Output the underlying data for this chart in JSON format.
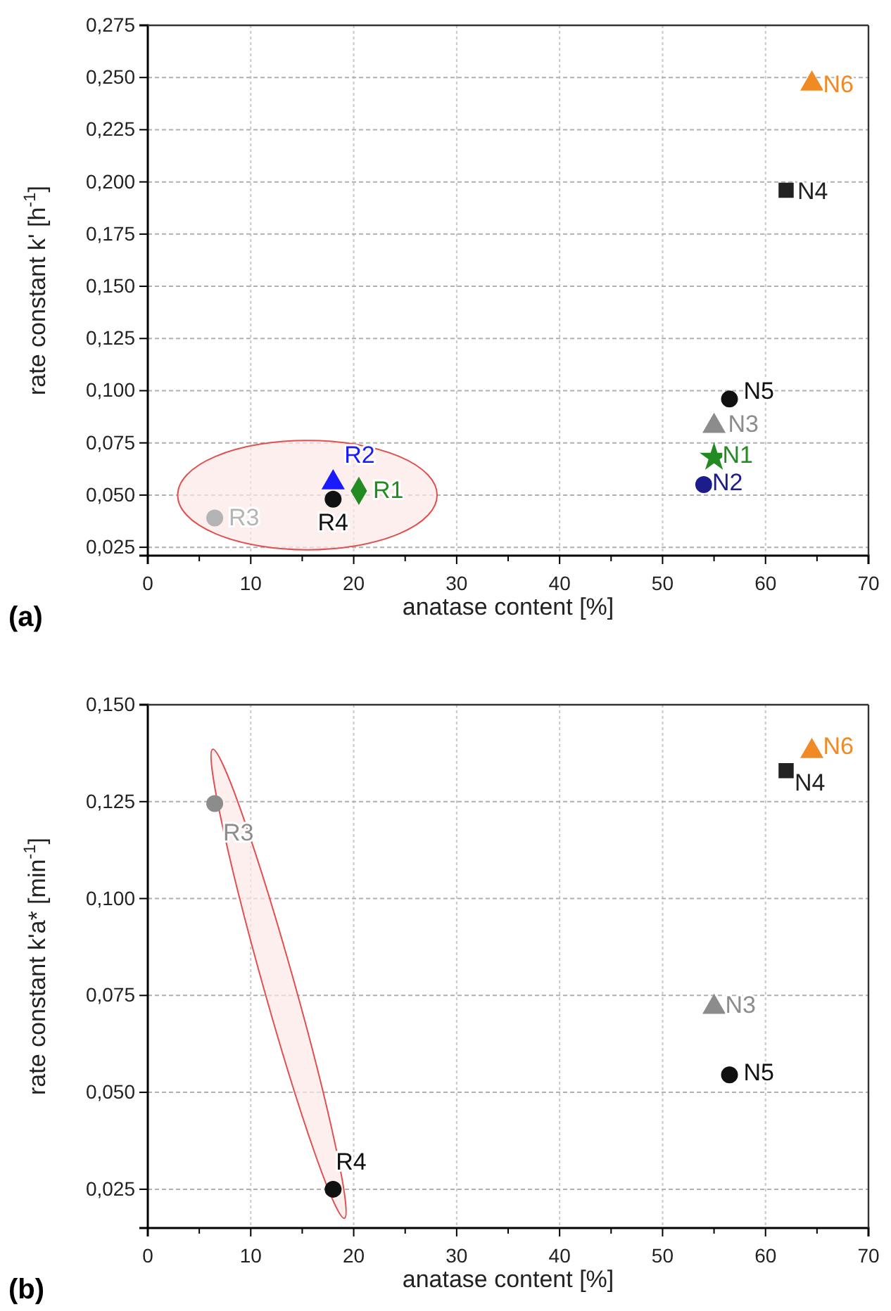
{
  "chart_data": [
    {
      "type": "scatter",
      "xlabel": "anatase content [%]",
      "ylabel": "rate constant k' [h$^{-1}$]",
      "annotations": [
        "(a)"
      ],
      "grid": true,
      "xlim": [
        0,
        70
      ],
      "xticks": [
        0,
        {
          "value": 5,
          "label": null
        },
        10,
        {
          "value": 15,
          "label": null
        },
        20,
        {
          "value": 25,
          "label": null
        },
        30,
        {
          "value": 35,
          "label": null
        },
        40,
        {
          "value": 45,
          "label": null
        },
        50,
        {
          "value": 55,
          "label": null
        },
        60,
        {
          "value": 65,
          "label": null
        },
        70
      ],
      "ylim": [
        0.021,
        0.275
      ],
      "yticks": [
        {
          "value": 0.025,
          "label": "0,025"
        },
        {
          "value": 0.05,
          "label": "0,050"
        },
        {
          "value": 0.075,
          "label": "0,075"
        },
        {
          "value": 0.1,
          "label": "0,100"
        },
        {
          "value": 0.125,
          "label": "0,125"
        },
        {
          "value": 0.15,
          "label": "0,150"
        },
        {
          "value": 0.175,
          "label": "0,175"
        },
        {
          "value": 0.2,
          "label": "0,200"
        },
        {
          "value": 0.225,
          "label": "0,225"
        },
        {
          "value": 0.25,
          "label": "0,250"
        },
        {
          "value": 0.275,
          "label": "0,275"
        }
      ],
      "series": [
        {
          "name": "R3",
          "color": "#b4b4b4",
          "marker": "circle",
          "x": [
            6.5
          ],
          "values": [
            0.039
          ]
        },
        {
          "name": "R4",
          "color": "#111111",
          "marker": "circle",
          "x": [
            18
          ],
          "values": [
            0.048
          ]
        },
        {
          "name": "R2",
          "color": "#1a1aff",
          "marker": "triangle",
          "x": [
            18
          ],
          "values": [
            0.056
          ]
        },
        {
          "name": "R1",
          "color": "#228b22",
          "marker": "diamond",
          "x": [
            20.5
          ],
          "values": [
            0.052
          ]
        },
        {
          "name": "N6",
          "color": "#f08a24",
          "marker": "triangle",
          "x": [
            64.5
          ],
          "values": [
            0.247
          ]
        },
        {
          "name": "N4",
          "color": "#222222",
          "marker": "square",
          "x": [
            62
          ],
          "values": [
            0.196
          ]
        },
        {
          "name": "N5",
          "color": "#111111",
          "marker": "circle",
          "x": [
            56.5
          ],
          "values": [
            0.096
          ]
        },
        {
          "name": "N3",
          "color": "#8c8c8c",
          "marker": "triangle",
          "x": [
            55
          ],
          "values": [
            0.083
          ]
        },
        {
          "name": "N1",
          "color": "#228b22",
          "marker": "star",
          "x": [
            55
          ],
          "values": [
            0.068
          ]
        },
        {
          "name": "N2",
          "color": "#1c1c8c",
          "marker": "circle",
          "x": [
            54
          ],
          "values": [
            0.055
          ]
        }
      ]
    },
    {
      "type": "scatter",
      "xlabel": "anatase content [%]",
      "ylabel": "rate constant k'a* [min$^{-1}$]",
      "annotations": [
        "(b)"
      ],
      "grid": true,
      "xlim": [
        0,
        70
      ],
      "xticks": [
        0,
        {
          "value": 5,
          "label": null
        },
        10,
        {
          "value": 15,
          "label": null
        },
        20,
        {
          "value": 25,
          "label": null
        },
        30,
        {
          "value": 35,
          "label": null
        },
        40,
        {
          "value": 45,
          "label": null
        },
        50,
        {
          "value": 55,
          "label": null
        },
        60,
        {
          "value": 65,
          "label": null
        },
        70
      ],
      "ylim": [
        0.015,
        0.15
      ],
      "yticks": [
        {
          "value": 0.025,
          "label": "0,025"
        },
        {
          "value": 0.05,
          "label": "0,050"
        },
        {
          "value": 0.075,
          "label": "0,075"
        },
        {
          "value": 0.1,
          "label": "0,100"
        },
        {
          "value": 0.125,
          "label": "0,125"
        },
        {
          "value": 0.15,
          "label": "0,150"
        }
      ],
      "series": [
        {
          "name": "R3",
          "color": "#8c8c8c",
          "marker": "circle",
          "x": [
            6.5
          ],
          "values": [
            0.1245
          ]
        },
        {
          "name": "R4",
          "color": "#111111",
          "marker": "circle",
          "x": [
            18
          ],
          "values": [
            0.025
          ]
        },
        {
          "name": "N6",
          "color": "#f08a24",
          "marker": "triangle",
          "x": [
            64.5
          ],
          "values": [
            0.138
          ]
        },
        {
          "name": "N4",
          "color": "#222222",
          "marker": "square",
          "x": [
            62
          ],
          "values": [
            0.133
          ]
        },
        {
          "name": "N3",
          "color": "#8c8c8c",
          "marker": "triangle",
          "x": [
            55
          ],
          "values": [
            0.072
          ]
        },
        {
          "name": "N5",
          "color": "#111111",
          "marker": "circle",
          "x": [
            56.5
          ],
          "values": [
            0.0545
          ]
        }
      ]
    }
  ]
}
